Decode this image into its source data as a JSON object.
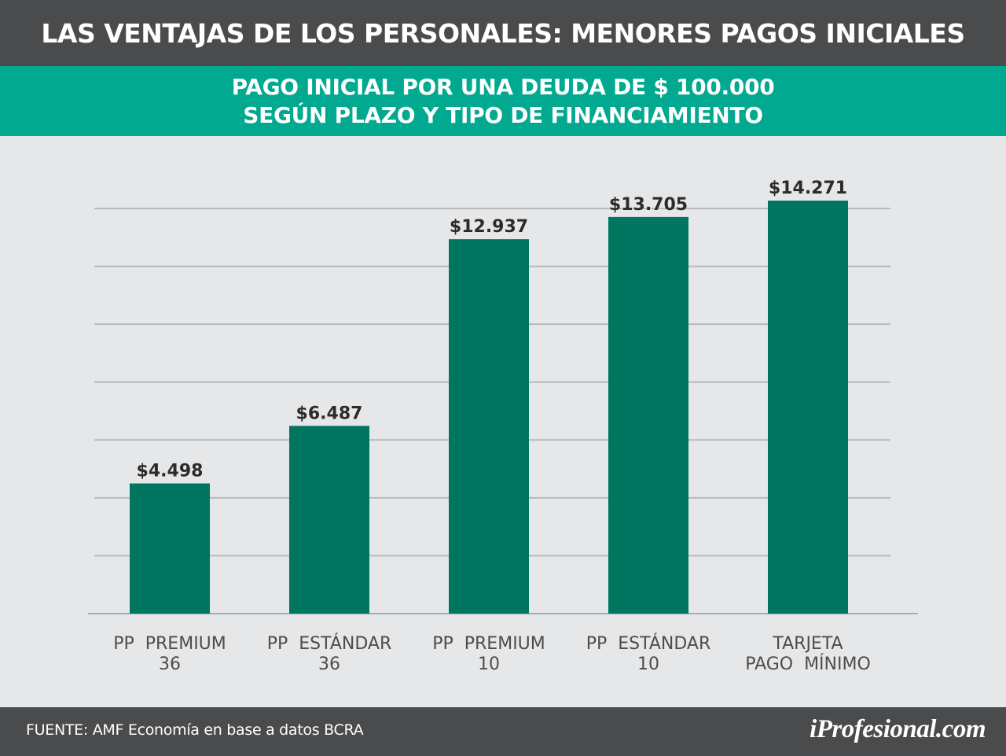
{
  "header": {
    "title": "LAS VENTAJAS DE LOS PERSONALES: MENORES PAGOS INICIALES",
    "subtitle_line1": "PAGO INICIAL POR UNA DEUDA DE $ 100.000",
    "subtitle_line2": "SEGÚN PLAZO Y TIPO DE FINANCIAMIENTO"
  },
  "chart_data": {
    "type": "bar",
    "categories": [
      [
        "PP  PREMIUM",
        "36"
      ],
      [
        "PP  ESTÁNDAR",
        "36"
      ],
      [
        "PP  PREMIUM",
        "10"
      ],
      [
        "PP  ESTÁNDAR",
        "10"
      ],
      [
        "TARJETA",
        "PAGO  MÍNIMO"
      ]
    ],
    "values": [
      4498,
      6487,
      12937,
      13705,
      14271
    ],
    "data_labels": [
      "$4.498",
      "$6.487",
      "$12.937",
      "$13.705",
      "$14.271"
    ],
    "ylim": [
      0,
      14000
    ],
    "grid": true,
    "gridlines": [
      2000,
      4000,
      6000,
      8000,
      10000,
      12000,
      14000
    ],
    "bar_color": "#007560",
    "grid_color": "#b7b9bb"
  },
  "footer": {
    "source": "FUENTE: AMF Economía en base a datos BCRA",
    "brand": "iProfesional.com"
  },
  "colors": {
    "title_bg": "#4a4b4c",
    "subtitle_bg": "#00a98f",
    "background": "#e6e7e8"
  }
}
